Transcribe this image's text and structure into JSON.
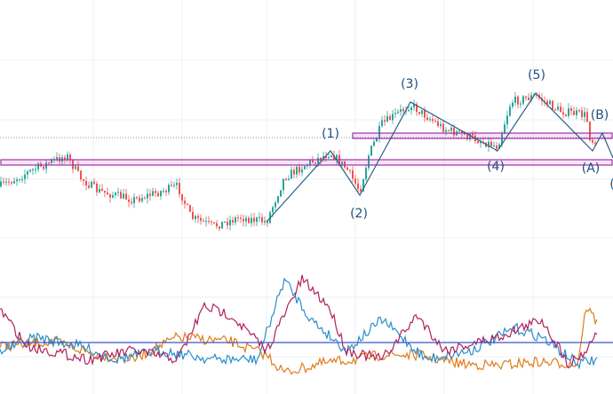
{
  "wave_labels": [
    "(1)",
    "(2)",
    "(3)",
    "(4)",
    "(5)",
    "(A)",
    "(B)",
    "("
  ]
}
